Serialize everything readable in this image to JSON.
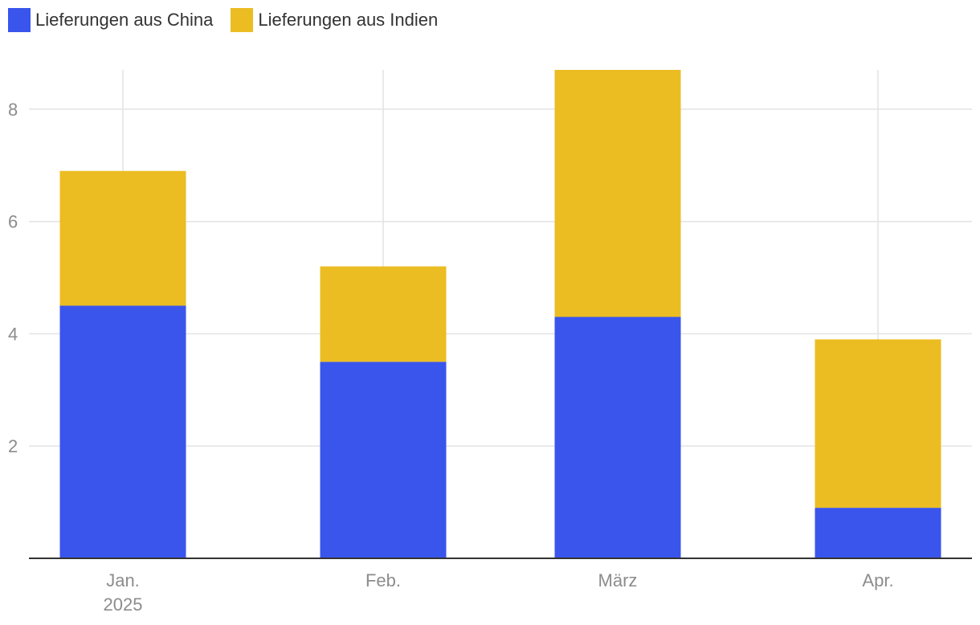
{
  "chart_data": {
    "type": "bar",
    "stacked": true,
    "categories": [
      "Jan.",
      "Feb.",
      "März",
      "Apr."
    ],
    "category_sublabels": [
      "2025",
      "",
      "",
      ""
    ],
    "series": [
      {
        "name": "Lieferungen aus China",
        "color": "#3a55ec",
        "values": [
          4.5,
          3.5,
          4.3,
          0.9
        ]
      },
      {
        "name": "Lieferungen aus Indien",
        "color": "#ebbd23",
        "values": [
          2.4,
          1.7,
          4.4,
          3.0
        ]
      }
    ],
    "ylim": [
      0,
      8.7
    ],
    "yticks": [
      2,
      4,
      6,
      8
    ],
    "grid": true,
    "legend_position": "top-left"
  }
}
